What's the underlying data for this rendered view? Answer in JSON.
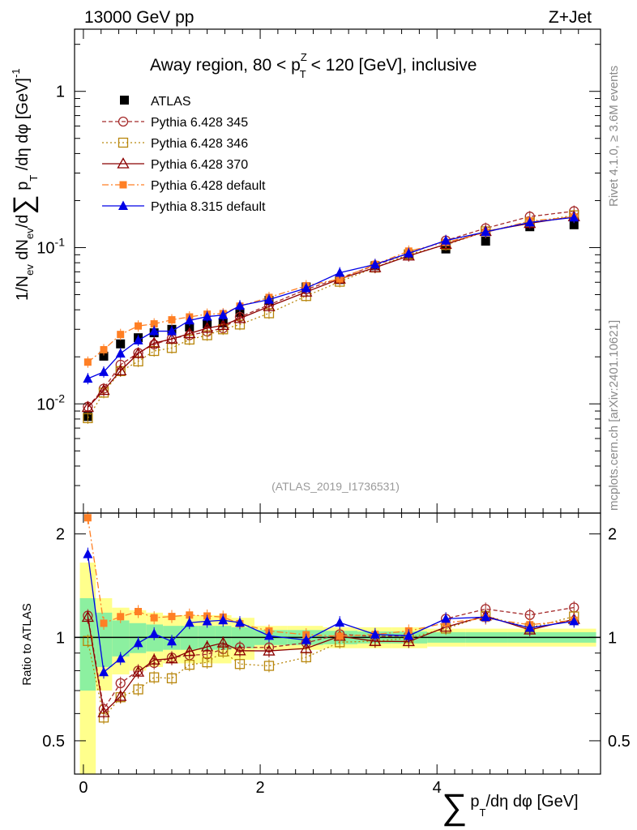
{
  "header": {
    "left": "13000 GeV pp",
    "right": "Z+Jet"
  },
  "side_labels": {
    "rivet": "Rivet 4.1.0, ≥ 3.6M events",
    "mcplots": "mcplots.cern.ch [arXiv:2401.10621]"
  },
  "watermark": "(ATLAS_2019_I1736531)",
  "chart_data": {
    "type": "line",
    "title": "Away region, 80 < p_T^Z < 120 [GeV], inclusive",
    "title_parts": {
      "pre": "Away region, 80 < p",
      "sup": "Z",
      "sub": "T",
      "post": " < 120 [GeV], inclusive"
    },
    "xlabel": "∑ p_T/dη dφ [GeV]",
    "xlabel_parts": {
      "sum": "∑",
      "p": "p",
      "sub": "T",
      "rest": "/dη dφ [GeV]"
    },
    "ylabel": "1/N_ev dN_ev/d∑ p_T/dη dφ [GeV]^-1",
    "ylabel_parts": {
      "a": "1/N",
      "ev": "ev",
      "b": " dN",
      "c": "/d",
      "sum": "∑",
      "d": " p",
      "t": "T",
      "e": " /dη dφ  [GeV]",
      "sup": "-1"
    },
    "ratio_ylabel": "Ratio to ATLAS",
    "xlim": [
      -0.1,
      5.85
    ],
    "ylim": [
      0.002,
      2.5
    ],
    "ratio_ylim": [
      0.4,
      2.3
    ],
    "yscale": "log",
    "x_ticks": [
      0,
      2,
      4
    ],
    "y_ticks": [
      {
        "v": 0.01,
        "base": "10",
        "exp": "-2"
      },
      {
        "v": 0.1,
        "base": "10",
        "exp": "-1"
      },
      {
        "v": 1,
        "base": "1",
        "exp": ""
      }
    ],
    "ratio_ticks": [
      {
        "v": 0.5,
        "label": "0.5"
      },
      {
        "v": 1,
        "label": "1"
      },
      {
        "v": 2,
        "label": "2"
      }
    ],
    "x": [
      0.05,
      0.23,
      0.42,
      0.62,
      0.8,
      1.0,
      1.2,
      1.4,
      1.58,
      1.77,
      2.1,
      2.52,
      2.9,
      3.3,
      3.68,
      4.1,
      4.55,
      5.05,
      5.55
    ],
    "reference": {
      "name": "ATLAS",
      "values": [
        0.0083,
        0.0202,
        0.0242,
        0.0265,
        0.0285,
        0.03,
        0.031,
        0.0325,
        0.033,
        0.0385,
        0.046,
        0.056,
        0.0625,
        0.0765,
        0.091,
        0.098,
        0.11,
        0.136,
        0.14
      ],
      "band_inner": [
        0.3,
        0.18,
        0.12,
        0.1,
        0.09,
        0.08,
        0.08,
        0.08,
        0.08,
        0.07,
        0.05,
        0.05,
        0.045,
        0.04,
        0.04,
        0.035,
        0.035,
        0.035,
        0.035
      ],
      "band_outer": [
        0.65,
        0.3,
        0.22,
        0.2,
        0.18,
        0.16,
        0.16,
        0.16,
        0.16,
        0.14,
        0.08,
        0.08,
        0.07,
        0.07,
        0.07,
        0.06,
        0.06,
        0.06,
        0.06
      ]
    },
    "series": [
      {
        "name": "Pythia 6.428 345",
        "color": "#a52a2a",
        "dash": "5,3",
        "marker": "open-circle",
        "values": [
          0.0096,
          0.0125,
          0.0178,
          0.0212,
          0.024,
          0.0262,
          0.0275,
          0.029,
          0.0305,
          0.036,
          0.043,
          0.054,
          0.0638,
          0.077,
          0.092,
          0.111,
          0.133,
          0.158,
          0.171
        ]
      },
      {
        "name": "Pythia 6.428 346",
        "color": "#b8860b",
        "dash": "2,3",
        "marker": "open-square",
        "values": [
          0.0081,
          0.0118,
          0.0162,
          0.0187,
          0.0218,
          0.0228,
          0.0258,
          0.0275,
          0.03,
          0.0322,
          0.038,
          0.049,
          0.0605,
          0.0746,
          0.0905,
          0.104,
          0.127,
          0.145,
          0.161
        ]
      },
      {
        "name": "Pythia 6.428 370",
        "color": "#8b0000",
        "dash": "",
        "marker": "open-triangle",
        "values": [
          0.0095,
          0.0122,
          0.0163,
          0.021,
          0.0245,
          0.026,
          0.0282,
          0.0305,
          0.0318,
          0.0352,
          0.042,
          0.052,
          0.063,
          0.0745,
          0.0885,
          0.105,
          0.127,
          0.143,
          0.158
        ]
      },
      {
        "name": "Pythia 6.428 default",
        "color": "#ff7f24",
        "dash": "8,3,2,3",
        "marker": "filled-square",
        "values": [
          0.0185,
          0.0222,
          0.0278,
          0.0315,
          0.0325,
          0.0345,
          0.036,
          0.0375,
          0.0378,
          0.0422,
          0.048,
          0.057,
          0.063,
          0.078,
          0.095,
          0.108,
          0.125,
          0.148,
          0.157
        ]
      },
      {
        "name": "Pythia 8.315 default",
        "color": "#0000e6",
        "dash": "",
        "marker": "filled-triangle",
        "values": [
          0.0145,
          0.016,
          0.021,
          0.0255,
          0.0292,
          0.0292,
          0.0342,
          0.0362,
          0.037,
          0.0425,
          0.0465,
          0.055,
          0.069,
          0.078,
          0.092,
          0.111,
          0.126,
          0.145,
          0.156
        ]
      }
    ]
  }
}
